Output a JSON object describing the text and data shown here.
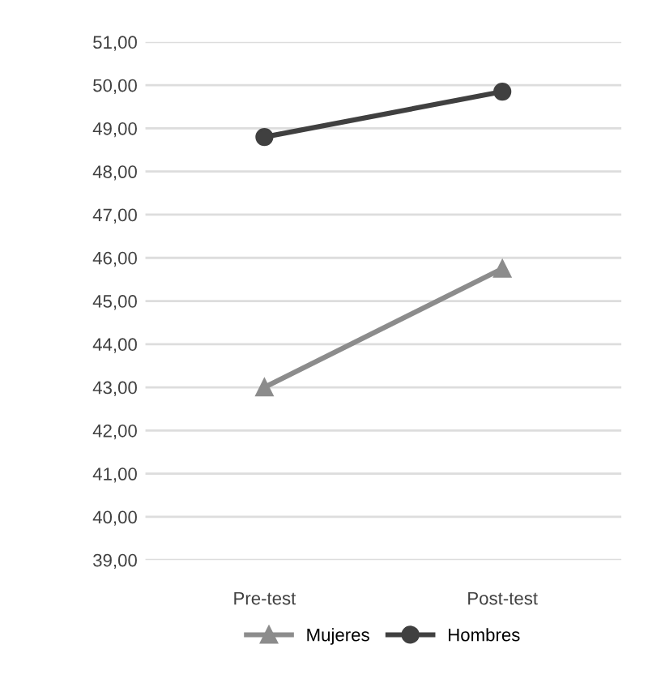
{
  "chart_data": {
    "type": "line",
    "categories": [
      "Pre-test",
      "Post-test"
    ],
    "series": [
      {
        "name": "Mujeres",
        "color": "#8c8c8c",
        "marker": "triangle",
        "values": [
          43.0,
          45.75
        ]
      },
      {
        "name": "Hombres",
        "color": "#404040",
        "marker": "circle",
        "values": [
          48.8,
          49.85
        ]
      }
    ],
    "ylim": [
      39,
      51
    ],
    "yticks": [
      {
        "value": 39,
        "label": "39,00"
      },
      {
        "value": 40,
        "label": "40,00"
      },
      {
        "value": 41,
        "label": "41,00"
      },
      {
        "value": 42,
        "label": "42,00"
      },
      {
        "value": 43,
        "label": "43,00"
      },
      {
        "value": 44,
        "label": "44,00"
      },
      {
        "value": 45,
        "label": "45,00"
      },
      {
        "value": 46,
        "label": "46,00"
      },
      {
        "value": 47,
        "label": "47,00"
      },
      {
        "value": 48,
        "label": "48,00"
      },
      {
        "value": 49,
        "label": "49,00"
      },
      {
        "value": 50,
        "label": "50,00"
      },
      {
        "value": 51,
        "label": "51,00"
      }
    ],
    "grid": "y",
    "legend": "bottom",
    "line_style": "solid"
  }
}
